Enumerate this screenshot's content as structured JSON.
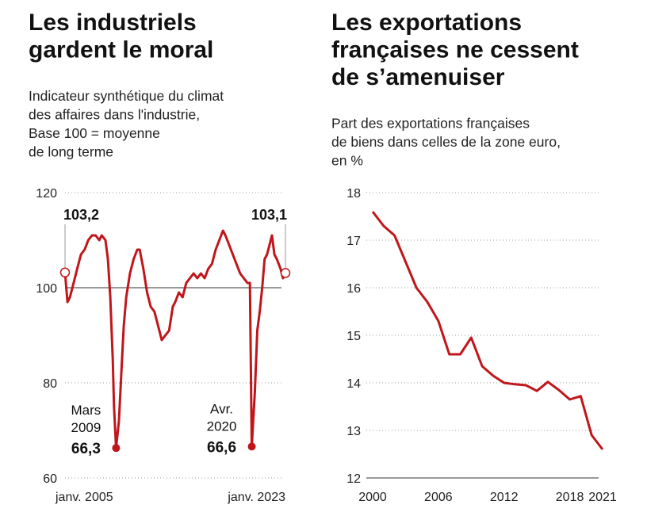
{
  "chart_data": [
    {
      "type": "line",
      "title": [
        "Les industriels",
        "gardent le moral"
      ],
      "subtitle": [
        "Indicateur synthétique du climat",
        "des affaires dans l'industrie,",
        "Base 100 = moyenne",
        "de long terme"
      ],
      "color": "#c0161b",
      "reference_line": 100,
      "x": [
        2005.0,
        2005.2,
        2005.4,
        2005.6,
        2005.8,
        2006.0,
        2006.3,
        2006.6,
        2006.9,
        2007.2,
        2007.5,
        2007.8,
        2008.0,
        2008.3,
        2008.5,
        2008.7,
        2008.9,
        2009.0,
        2009.17,
        2009.4,
        2009.6,
        2009.8,
        2010.0,
        2010.3,
        2010.6,
        2010.9,
        2011.1,
        2011.4,
        2011.7,
        2012.0,
        2012.3,
        2012.6,
        2012.9,
        2013.2,
        2013.5,
        2013.8,
        2014.0,
        2014.3,
        2014.6,
        2014.9,
        2015.2,
        2015.5,
        2015.8,
        2016.1,
        2016.4,
        2016.7,
        2017.0,
        2017.3,
        2017.6,
        2017.9,
        2018.1,
        2018.4,
        2018.7,
        2019.0,
        2019.3,
        2019.6,
        2019.9,
        2020.1,
        2020.25,
        2020.5,
        2020.7,
        2020.9,
        2021.1,
        2021.3,
        2021.5,
        2021.7,
        2021.9,
        2022.1,
        2022.3,
        2022.6,
        2022.8,
        2023.0
      ],
      "values": [
        103.2,
        97,
        98,
        100,
        102,
        104,
        107,
        108,
        110,
        111,
        111,
        110,
        111,
        110,
        106,
        98,
        85,
        75,
        66.3,
        72,
        82,
        92,
        98,
        103,
        106,
        108,
        108,
        104,
        99,
        96,
        95,
        92,
        89,
        90,
        91,
        96,
        97,
        99,
        98,
        101,
        102,
        103,
        102,
        103,
        102,
        104,
        105,
        108,
        110,
        112,
        111,
        109,
        107,
        105,
        103,
        102,
        101,
        101,
        66.6,
        78,
        91,
        95,
        100,
        106,
        107,
        109,
        111,
        107,
        106,
        104,
        102,
        103.1
      ],
      "value_labels": [
        "103,2",
        null,
        null,
        null,
        null,
        null,
        null,
        null,
        null,
        null,
        null,
        null,
        null,
        null,
        null,
        null,
        null,
        null,
        "66,3",
        null,
        null,
        null,
        null,
        null,
        null,
        null,
        null,
        null,
        null,
        null,
        null,
        null,
        null,
        null,
        null,
        null,
        null,
        null,
        null,
        null,
        null,
        null,
        null,
        null,
        null,
        null,
        null,
        null,
        null,
        null,
        null,
        null,
        null,
        null,
        null,
        null,
        null,
        null,
        "66,6",
        null,
        null,
        null,
        null,
        null,
        null,
        null,
        null,
        null,
        null,
        null,
        null,
        "103,1"
      ],
      "point_labels": [
        null,
        null,
        null,
        null,
        null,
        null,
        null,
        null,
        null,
        null,
        null,
        null,
        null,
        null,
        null,
        null,
        null,
        null,
        [
          "Mars",
          "2009"
        ],
        null,
        null,
        null,
        null,
        null,
        null,
        null,
        null,
        null,
        null,
        null,
        null,
        null,
        null,
        null,
        null,
        null,
        null,
        null,
        null,
        null,
        null,
        null,
        null,
        null,
        null,
        null,
        null,
        null,
        null,
        null,
        null,
        null,
        null,
        null,
        null,
        null,
        null,
        null,
        [
          "Avr.",
          "2020"
        ],
        null,
        null,
        null,
        null,
        null,
        null,
        null,
        null,
        null,
        null,
        null,
        null,
        null
      ],
      "xlim": [
        2005,
        2023
      ],
      "xticks": [
        {
          "value": 2005,
          "label": "janv. 2005"
        },
        {
          "value": 2023,
          "label": "janv. 2023"
        }
      ],
      "ylim": [
        60,
        120
      ],
      "yticks": [
        60,
        80,
        100,
        120
      ],
      "grid": true
    },
    {
      "type": "line",
      "title": [
        "Les exportations",
        "françaises ne cessent",
        "de s’amenuiser"
      ],
      "subtitle": [
        "Part des exportations françaises",
        "de biens dans celles de la zone euro,",
        "en %"
      ],
      "color": "#c0161b",
      "x": [
        2000,
        2001,
        2002,
        2003,
        2004,
        2005,
        2006,
        2007,
        2008,
        2009,
        2010,
        2011,
        2012,
        2013,
        2014,
        2015,
        2016,
        2017,
        2018,
        2019,
        2020,
        2021
      ],
      "values": [
        17.6,
        17.3,
        17.1,
        16.55,
        16.0,
        15.7,
        15.3,
        14.6,
        14.6,
        14.95,
        14.35,
        14.15,
        14.0,
        13.97,
        13.95,
        13.83,
        14.02,
        13.85,
        13.65,
        13.72,
        12.9,
        12.6
      ],
      "xlim": [
        2000,
        2021
      ],
      "xticks": [
        2000,
        2006,
        2012,
        2018,
        2021
      ],
      "ylim": [
        12,
        18
      ],
      "yticks": [
        12,
        13,
        14,
        15,
        16,
        17,
        18
      ],
      "grid": true
    }
  ]
}
